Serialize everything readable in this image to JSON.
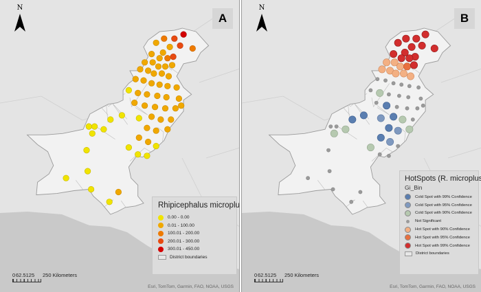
{
  "panel_a": {
    "label": "A",
    "north_label": "N",
    "legend": {
      "title": "Rhipicephalus microplus",
      "items": [
        {
          "label": "0.00 - 0.00",
          "color": "#f0e400"
        },
        {
          "label": "0.01 - 100.00",
          "color": "#f0a800"
        },
        {
          "label": "100.01 - 200.00",
          "color": "#ee7a00"
        },
        {
          "label": "200.01 - 300.00",
          "color": "#e84a10"
        },
        {
          "label": "300.01 - 450.00",
          "color": "#d40000"
        }
      ],
      "boundary_label": "District boundaries"
    },
    "scale": {
      "zero": "0",
      "mid": "62.5125",
      "end": "250 Kilometers"
    },
    "attribution": "Esri, TomTom, Garmin, FAO, NOAA, USGS",
    "points": [
      {
        "lon": 74.6,
        "lat": 36.6,
        "class": 4
      },
      {
        "lon": 73.8,
        "lat": 36.3,
        "class": 3
      },
      {
        "lon": 72.9,
        "lat": 36.3,
        "class": 2
      },
      {
        "lon": 74.3,
        "lat": 35.8,
        "class": 3
      },
      {
        "lon": 75.4,
        "lat": 35.6,
        "class": 2
      },
      {
        "lon": 72.2,
        "lat": 36.0,
        "class": 1
      },
      {
        "lon": 73.4,
        "lat": 35.7,
        "class": 1
      },
      {
        "lon": 72.8,
        "lat": 35.3,
        "class": 1
      },
      {
        "lon": 73.7,
        "lat": 35.0,
        "class": 3
      },
      {
        "lon": 71.8,
        "lat": 35.2,
        "class": 1
      },
      {
        "lon": 72.5,
        "lat": 34.9,
        "class": 1
      },
      {
        "lon": 73.2,
        "lat": 34.9,
        "class": 2
      },
      {
        "lon": 71.2,
        "lat": 34.6,
        "class": 1
      },
      {
        "lon": 71.9,
        "lat": 34.6,
        "class": 1
      },
      {
        "lon": 72.4,
        "lat": 34.3,
        "class": 1
      },
      {
        "lon": 73.0,
        "lat": 34.3,
        "class": 1
      },
      {
        "lon": 73.6,
        "lat": 34.4,
        "class": 1
      },
      {
        "lon": 70.8,
        "lat": 34.1,
        "class": 1
      },
      {
        "lon": 71.5,
        "lat": 34.0,
        "class": 1
      },
      {
        "lon": 72.0,
        "lat": 33.8,
        "class": 1
      },
      {
        "lon": 72.7,
        "lat": 33.8,
        "class": 1
      },
      {
        "lon": 73.3,
        "lat": 33.6,
        "class": 1
      },
      {
        "lon": 70.4,
        "lat": 33.4,
        "class": 1
      },
      {
        "lon": 71.1,
        "lat": 33.3,
        "class": 1
      },
      {
        "lon": 71.8,
        "lat": 33.1,
        "class": 1
      },
      {
        "lon": 72.5,
        "lat": 33.0,
        "class": 1
      },
      {
        "lon": 73.2,
        "lat": 32.9,
        "class": 1
      },
      {
        "lon": 74.0,
        "lat": 32.8,
        "class": 1
      },
      {
        "lon": 69.8,
        "lat": 32.6,
        "class": 0
      },
      {
        "lon": 70.6,
        "lat": 32.4,
        "class": 1
      },
      {
        "lon": 71.4,
        "lat": 32.3,
        "class": 1
      },
      {
        "lon": 72.3,
        "lat": 32.2,
        "class": 1
      },
      {
        "lon": 73.1,
        "lat": 32.1,
        "class": 1
      },
      {
        "lon": 74.2,
        "lat": 32.0,
        "class": 1
      },
      {
        "lon": 70.3,
        "lat": 31.7,
        "class": 1
      },
      {
        "lon": 71.2,
        "lat": 31.5,
        "class": 1
      },
      {
        "lon": 72.1,
        "lat": 31.4,
        "class": 1
      },
      {
        "lon": 73.0,
        "lat": 31.3,
        "class": 1
      },
      {
        "lon": 73.9,
        "lat": 31.3,
        "class": 1
      },
      {
        "lon": 74.4,
        "lat": 31.5,
        "class": 1
      },
      {
        "lon": 71.8,
        "lat": 30.7,
        "class": 1
      },
      {
        "lon": 72.6,
        "lat": 30.5,
        "class": 1
      },
      {
        "lon": 73.5,
        "lat": 30.5,
        "class": 1
      },
      {
        "lon": 70.7,
        "lat": 30.6,
        "class": 0
      },
      {
        "lon": 69.2,
        "lat": 30.8,
        "class": 0
      },
      {
        "lon": 68.2,
        "lat": 30.5,
        "class": 0
      },
      {
        "lon": 71.4,
        "lat": 29.9,
        "class": 1
      },
      {
        "lon": 72.2,
        "lat": 29.7,
        "class": 1
      },
      {
        "lon": 73.2,
        "lat": 29.8,
        "class": 1
      },
      {
        "lon": 66.8,
        "lat": 30.0,
        "class": 0
      },
      {
        "lon": 66.3,
        "lat": 30.0,
        "class": 0
      },
      {
        "lon": 67.6,
        "lat": 29.8,
        "class": 0
      },
      {
        "lon": 66.6,
        "lat": 29.5,
        "class": 0
      },
      {
        "lon": 70.7,
        "lat": 29.2,
        "class": 1
      },
      {
        "lon": 71.5,
        "lat": 28.9,
        "class": 1
      },
      {
        "lon": 72.2,
        "lat": 28.6,
        "class": 0
      },
      {
        "lon": 69.8,
        "lat": 28.5,
        "class": 0
      },
      {
        "lon": 70.6,
        "lat": 28.0,
        "class": 0
      },
      {
        "lon": 71.4,
        "lat": 27.9,
        "class": 0
      },
      {
        "lon": 66.1,
        "lat": 28.3,
        "class": 0
      },
      {
        "lon": 64.3,
        "lat": 26.3,
        "class": 0
      },
      {
        "lon": 66.2,
        "lat": 26.8,
        "class": 0
      },
      {
        "lon": 66.5,
        "lat": 25.5,
        "class": 0
      },
      {
        "lon": 68.9,
        "lat": 25.3,
        "class": 1
      },
      {
        "lon": 68.1,
        "lat": 24.6,
        "class": 0
      }
    ]
  },
  "panel_b": {
    "label": "B",
    "north_label": "N",
    "legend": {
      "title": "HotSpots (R. microplus)",
      "field": "Gi_Bin",
      "items": [
        {
          "label": "Cold Spot with 99% Confidence",
          "color": "#5a7eb0"
        },
        {
          "label": "Cold Spot with 95% Confidence",
          "color": "#7f99bf"
        },
        {
          "label": "Cold Spot with 90% Confidence",
          "color": "#b6c9b0"
        },
        {
          "label": "Not Significant",
          "color": "#9a9a9a"
        },
        {
          "label": "Hot Spot with 90% Confidence",
          "color": "#f3b083"
        },
        {
          "label": "Hot Spot with 95% Confidence",
          "color": "#e8703f"
        },
        {
          "label": "Hot Spot with 99% Confidence",
          "color": "#d22e2e"
        }
      ],
      "boundary_label": "District boundaries"
    },
    "scale": {
      "zero": "0",
      "mid": "62.5125",
      "end": "250 Kilometers"
    },
    "attribution": "Esri, TomTom, Garmin, FAO, NOAA, USGS",
    "points": [
      {
        "lon": 74.6,
        "lat": 36.6,
        "class": 6
      },
      {
        "lon": 73.8,
        "lat": 36.3,
        "class": 6
      },
      {
        "lon": 72.9,
        "lat": 36.3,
        "class": 6
      },
      {
        "lon": 74.3,
        "lat": 35.8,
        "class": 6
      },
      {
        "lon": 75.4,
        "lat": 35.6,
        "class": 6
      },
      {
        "lon": 72.2,
        "lat": 36.0,
        "class": 6
      },
      {
        "lon": 73.4,
        "lat": 35.7,
        "class": 6
      },
      {
        "lon": 72.8,
        "lat": 35.3,
        "class": 6
      },
      {
        "lon": 73.7,
        "lat": 35.0,
        "class": 6
      },
      {
        "lon": 71.8,
        "lat": 35.2,
        "class": 6
      },
      {
        "lon": 72.5,
        "lat": 34.9,
        "class": 6
      },
      {
        "lon": 73.2,
        "lat": 34.9,
        "class": 6
      },
      {
        "lon": 71.2,
        "lat": 34.6,
        "class": 4
      },
      {
        "lon": 71.9,
        "lat": 34.6,
        "class": 4
      },
      {
        "lon": 72.4,
        "lat": 34.3,
        "class": 4
      },
      {
        "lon": 73.0,
        "lat": 34.3,
        "class": 5
      },
      {
        "lon": 73.6,
        "lat": 34.4,
        "class": 6
      },
      {
        "lon": 70.8,
        "lat": 34.1,
        "class": 4
      },
      {
        "lon": 71.5,
        "lat": 34.0,
        "class": 4
      },
      {
        "lon": 72.0,
        "lat": 33.8,
        "class": 4
      },
      {
        "lon": 72.7,
        "lat": 33.8,
        "class": 4
      },
      {
        "lon": 73.3,
        "lat": 33.6,
        "class": 4
      },
      {
        "lon": 70.4,
        "lat": 33.4,
        "class": 3
      },
      {
        "lon": 71.1,
        "lat": 33.3,
        "class": 3
      },
      {
        "lon": 71.8,
        "lat": 33.1,
        "class": 3
      },
      {
        "lon": 72.5,
        "lat": 33.0,
        "class": 3
      },
      {
        "lon": 73.2,
        "lat": 32.9,
        "class": 3
      },
      {
        "lon": 74.0,
        "lat": 32.8,
        "class": 3
      },
      {
        "lon": 69.8,
        "lat": 32.6,
        "class": 3
      },
      {
        "lon": 70.6,
        "lat": 32.4,
        "class": 2
      },
      {
        "lon": 71.4,
        "lat": 32.3,
        "class": 3
      },
      {
        "lon": 72.3,
        "lat": 32.2,
        "class": 3
      },
      {
        "lon": 73.1,
        "lat": 32.1,
        "class": 3
      },
      {
        "lon": 74.2,
        "lat": 32.0,
        "class": 3
      },
      {
        "lon": 70.3,
        "lat": 31.7,
        "class": 3
      },
      {
        "lon": 71.2,
        "lat": 31.5,
        "class": 0
      },
      {
        "lon": 72.1,
        "lat": 31.4,
        "class": 3
      },
      {
        "lon": 73.0,
        "lat": 31.3,
        "class": 3
      },
      {
        "lon": 73.9,
        "lat": 31.3,
        "class": 3
      },
      {
        "lon": 74.4,
        "lat": 31.5,
        "class": 3
      },
      {
        "lon": 71.8,
        "lat": 30.7,
        "class": 0
      },
      {
        "lon": 72.6,
        "lat": 30.5,
        "class": 2
      },
      {
        "lon": 73.5,
        "lat": 30.5,
        "class": 3
      },
      {
        "lon": 70.7,
        "lat": 30.6,
        "class": 1
      },
      {
        "lon": 69.2,
        "lat": 30.8,
        "class": 0
      },
      {
        "lon": 68.2,
        "lat": 30.5,
        "class": 0
      },
      {
        "lon": 71.4,
        "lat": 29.9,
        "class": 0
      },
      {
        "lon": 72.2,
        "lat": 29.7,
        "class": 1
      },
      {
        "lon": 73.2,
        "lat": 29.8,
        "class": 2
      },
      {
        "lon": 66.8,
        "lat": 30.0,
        "class": 3
      },
      {
        "lon": 66.3,
        "lat": 30.0,
        "class": 3
      },
      {
        "lon": 67.6,
        "lat": 29.8,
        "class": 2
      },
      {
        "lon": 66.6,
        "lat": 29.5,
        "class": 2
      },
      {
        "lon": 70.7,
        "lat": 29.2,
        "class": 0
      },
      {
        "lon": 71.5,
        "lat": 28.9,
        "class": 1
      },
      {
        "lon": 72.2,
        "lat": 28.6,
        "class": 3
      },
      {
        "lon": 69.8,
        "lat": 28.5,
        "class": 2
      },
      {
        "lon": 70.6,
        "lat": 28.0,
        "class": 3
      },
      {
        "lon": 71.4,
        "lat": 27.9,
        "class": 3
      },
      {
        "lon": 66.1,
        "lat": 28.3,
        "class": 3
      },
      {
        "lon": 64.3,
        "lat": 26.3,
        "class": 3
      },
      {
        "lon": 66.2,
        "lat": 26.8,
        "class": 3
      },
      {
        "lon": 66.5,
        "lat": 25.5,
        "class": 3
      },
      {
        "lon": 68.9,
        "lat": 25.3,
        "class": 3
      },
      {
        "lon": 68.1,
        "lat": 24.6,
        "class": 3
      }
    ]
  }
}
